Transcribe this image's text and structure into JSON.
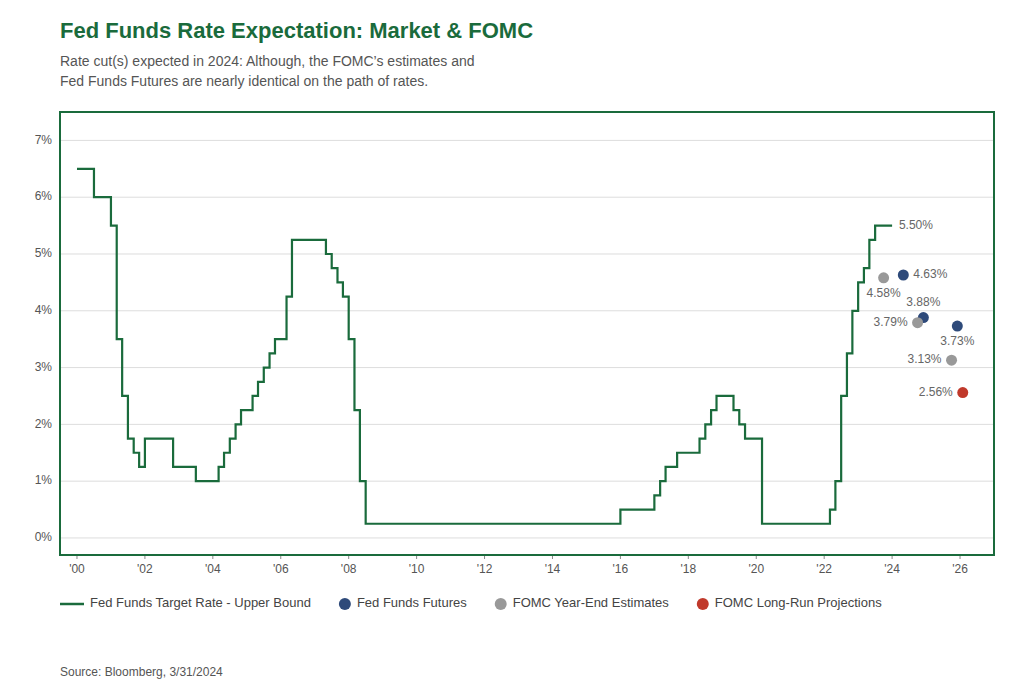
{
  "chart_data": {
    "type": "line",
    "title": "Fed Funds Rate Expectation: Market & FOMC",
    "subtitle": "Rate cut(s) expected in 2024: Although, the FOMC’s estimates and\nFed Funds Futures are nearly identical on the path of rates.",
    "source": "Source: Bloomberg, 3/31/2024",
    "xlim": [
      1999.5,
      2027.0
    ],
    "ylim": [
      -0.3,
      7.5
    ],
    "xticks": [
      {
        "value": 2000,
        "label": "'00"
      },
      {
        "value": 2002,
        "label": "'02"
      },
      {
        "value": 2004,
        "label": "'04"
      },
      {
        "value": 2006,
        "label": "'06"
      },
      {
        "value": 2008,
        "label": "'08"
      },
      {
        "value": 2010,
        "label": "'10"
      },
      {
        "value": 2012,
        "label": "'12"
      },
      {
        "value": 2014,
        "label": "'14"
      },
      {
        "value": 2016,
        "label": "'16"
      },
      {
        "value": 2018,
        "label": "'18"
      },
      {
        "value": 2020,
        "label": "'20"
      },
      {
        "value": 2022,
        "label": "'22"
      },
      {
        "value": 2024,
        "label": "'24"
      },
      {
        "value": 2026,
        "label": "'26"
      }
    ],
    "yticks": [
      {
        "value": 0,
        "label": "0%"
      },
      {
        "value": 1,
        "label": "1%"
      },
      {
        "value": 2,
        "label": "2%"
      },
      {
        "value": 3,
        "label": "3%"
      },
      {
        "value": 4,
        "label": "4%"
      },
      {
        "value": 5,
        "label": "5%"
      },
      {
        "value": 6,
        "label": "6%"
      },
      {
        "value": 7,
        "label": "7%"
      }
    ],
    "grid": "y",
    "legend": "bottom",
    "series": [
      {
        "name": "Fed Funds Target Rate - Upper Bound",
        "type": "line",
        "line_style": "step",
        "color": "#1a6b3c",
        "x": [
          2000.0,
          2000.5,
          2001.0,
          2001.17,
          2001.33,
          2001.5,
          2001.67,
          2001.83,
          2002.0,
          2002.83,
          2003.0,
          2003.5,
          2003.67,
          2004.0,
          2004.17,
          2004.33,
          2004.5,
          2004.67,
          2004.83,
          2005.0,
          2005.17,
          2005.33,
          2005.5,
          2005.67,
          2005.83,
          2006.0,
          2006.17,
          2006.33,
          2006.5,
          2007.0,
          2007.33,
          2007.5,
          2007.67,
          2007.83,
          2008.0,
          2008.17,
          2008.33,
          2008.5,
          2009.0,
          2015.83,
          2016.0,
          2016.83,
          2017.0,
          2017.17,
          2017.33,
          2017.67,
          2018.0,
          2018.17,
          2018.33,
          2018.5,
          2018.67,
          2018.83,
          2019.0,
          2019.33,
          2019.5,
          2019.67,
          2020.0,
          2020.17,
          2022.0,
          2022.17,
          2022.33,
          2022.5,
          2022.67,
          2022.83,
          2023.0,
          2023.17,
          2023.33,
          2023.5,
          2023.67,
          2024.0
        ],
        "values": [
          6.5,
          6.0,
          5.5,
          3.5,
          2.5,
          1.75,
          1.5,
          1.25,
          1.75,
          1.25,
          1.25,
          1.0,
          1.0,
          1.0,
          1.25,
          1.5,
          1.75,
          2.0,
          2.25,
          2.25,
          2.5,
          2.75,
          3.0,
          3.25,
          3.5,
          3.5,
          4.25,
          5.25,
          5.25,
          5.25,
          5.0,
          4.75,
          4.5,
          4.25,
          3.5,
          2.25,
          1.0,
          0.25,
          0.25,
          0.25,
          0.5,
          0.5,
          0.75,
          1.0,
          1.25,
          1.5,
          1.5,
          1.5,
          1.75,
          2.0,
          2.25,
          2.5,
          2.5,
          2.25,
          2.0,
          1.75,
          1.75,
          0.25,
          0.25,
          0.5,
          1.0,
          2.5,
          3.25,
          4.0,
          4.5,
          4.75,
          5.25,
          5.5,
          5.5,
          5.5
        ]
      },
      {
        "name": "Fed Funds Futures",
        "type": "scatter",
        "marker": "circle",
        "color": "#2e4a7a",
        "x": [
          2024.33,
          2024.92,
          2025.92
        ],
        "values": [
          4.63,
          3.88,
          3.73
        ],
        "data_labels": true,
        "value_labels": [
          "4.63%",
          "3.88%",
          "3.73%"
        ]
      },
      {
        "name": "FOMC Year-End Estimates",
        "type": "scatter",
        "marker": "circle",
        "color": "#999999",
        "x": [
          2023.75,
          2024.75,
          2025.75
        ],
        "values": [
          4.58,
          3.79,
          3.13
        ],
        "data_labels": true,
        "value_labels": [
          "4.58%",
          "3.79%",
          "3.13%"
        ]
      },
      {
        "name": "FOMC Long-Run Projections",
        "type": "scatter",
        "marker": "circle",
        "color": "#c0392b",
        "x": [
          2026.08
        ],
        "values": [
          2.56
        ],
        "data_labels": true,
        "value_labels": [
          "2.56%"
        ]
      }
    ],
    "annotations": [
      {
        "text": "5.50%",
        "x": 2023.67,
        "y": 5.5
      }
    ]
  }
}
